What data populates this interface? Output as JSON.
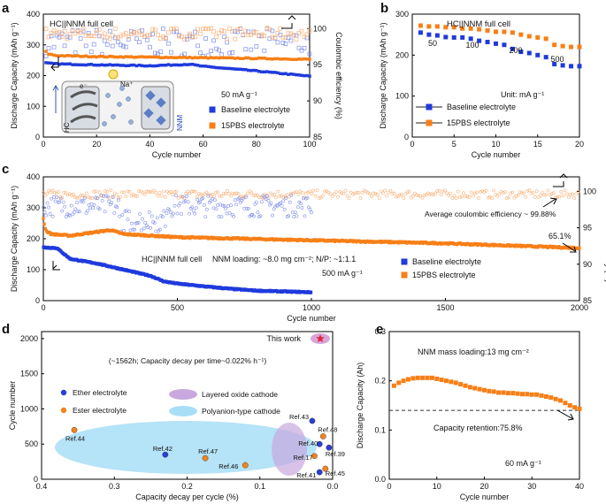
{
  "chart_data": [
    {
      "panel": "a",
      "type": "scatter",
      "title": "HC||NNM full cell",
      "xlabel": "Cycle number",
      "ylabel": "Discharge Capacity (mAh g⁻¹)",
      "ylabel2": "Coulombic efficiency (%)",
      "xlim": [
        0,
        100
      ],
      "ylim": [
        0,
        400
      ],
      "y2lim": [
        85,
        102
      ],
      "xticks": [
        "0",
        "20",
        "40",
        "60",
        "80",
        "100"
      ],
      "yticks": [
        "0",
        "100",
        "200",
        "300",
        "400"
      ],
      "y2ticks": [
        "85",
        "90",
        "95",
        "100"
      ],
      "current": "50 mA g⁻¹",
      "inset_labels": [
        "e⁻",
        "Na⁺",
        "HC",
        "NNM"
      ],
      "series": [
        {
          "name": "Baseline electrolyte",
          "color": "#1f3bdc",
          "capacity": {
            "x": [
              0,
              2,
              5,
              20,
              40,
              55,
              60,
              80,
              100
            ],
            "y": [
              242,
              240,
              238,
              235,
              232,
              237,
              230,
              215,
              198
            ]
          },
          "ce_avg": 98.0
        },
        {
          "name": "15PBS electrolyte",
          "color": "#f77f16",
          "capacity": {
            "x": [
              0,
              2,
              5,
              20,
              40,
              60,
              80,
              100
            ],
            "y": [
              285,
              270,
              265,
              262,
              260,
              258,
              256,
              253
            ]
          },
          "ce_avg": 99.7
        }
      ]
    },
    {
      "panel": "b",
      "type": "line",
      "title": "HC||NNM full cell",
      "xlabel": "Cycle number",
      "ylabel": "Discharge Capacity (mAh g⁻¹)",
      "xlim": [
        0,
        20
      ],
      "ylim": [
        0,
        300
      ],
      "xticks": [
        "0",
        "5",
        "10",
        "15",
        "20"
      ],
      "yticks": [
        "0",
        "100",
        "200",
        "300"
      ],
      "rate_labels": [
        "50",
        "100",
        "200",
        "500"
      ],
      "unit": "Unit: mA g⁻¹",
      "x": [
        1,
        2,
        3,
        4,
        5,
        6,
        7,
        8,
        9,
        10,
        11,
        12,
        13,
        14,
        15,
        16,
        17,
        18,
        19,
        20
      ],
      "series": [
        {
          "name": "Baseline electrolyte",
          "color": "#1f3bdc",
          "values": [
            255,
            250,
            248,
            244,
            243,
            243,
            240,
            235,
            232,
            228,
            225,
            215,
            208,
            205,
            200,
            195,
            178,
            175,
            173,
            173
          ]
        },
        {
          "name": "15PBS electrolyte",
          "color": "#f77f16",
          "values": [
            272,
            270,
            270,
            268,
            268,
            265,
            265,
            263,
            260,
            257,
            257,
            255,
            250,
            246,
            243,
            240,
            225,
            222,
            220,
            220
          ]
        }
      ]
    },
    {
      "panel": "c",
      "type": "scatter",
      "xlabel": "Cycle number",
      "ylabel": "Discharge Capacity (mAh g⁻¹)",
      "ylabel2": "Coulombic efficiency (%)",
      "xlim": [
        0,
        2000
      ],
      "ylim": [
        0,
        400
      ],
      "y2lim": [
        85,
        102
      ],
      "xticks": [
        "0",
        "500",
        "1000",
        "1500",
        "2000"
      ],
      "yticks": [
        "0",
        "100",
        "200",
        "300",
        "400"
      ],
      "y2ticks": [
        "85",
        "90",
        "95",
        "100"
      ],
      "annotations": {
        "ce": "Average coulombic efficiency ~ 99.88%",
        "retention": "65.1%",
        "cell": "HC||NNM full cell",
        "loading": "NNM loading: ~8.0 mg cm⁻²; N/P: ~1:1.1",
        "current": "500 mA g⁻¹"
      },
      "series": [
        {
          "name": "Baseline electrolyte",
          "color": "#1f3bdc",
          "capacity": {
            "x": [
              0,
              50,
              100,
              200,
              300,
              400,
              450,
              500,
              600,
              700,
              800,
              1000
            ],
            "y": [
              172,
              170,
              135,
              120,
              100,
              80,
              62,
              55,
              46,
              38,
              32,
              27
            ]
          }
        },
        {
          "name": "15PBS electrolyte",
          "color": "#f77f16",
          "capacity": {
            "x": [
              0,
              10,
              30,
              100,
              200,
              250,
              300,
              500,
              1000,
              1500,
              2000
            ],
            "y": [
              265,
              225,
              215,
              210,
              222,
              228,
              215,
              205,
              195,
              185,
              170
            ]
          }
        }
      ]
    },
    {
      "panel": "d",
      "type": "scatter",
      "xlabel": "Capacity decay per cycle (%)",
      "ylabel": "Cycle number",
      "xlim": [
        0.4,
        0.0
      ],
      "ylim": [
        0,
        2100
      ],
      "xticks": [
        "0.4",
        "0.3",
        "0.2",
        "0.1",
        "0.0"
      ],
      "yticks": [
        "0",
        "500",
        "1000",
        "1500",
        "2000"
      ],
      "this_work": {
        "label": "This work",
        "note": "(~1562h; Capacity decay per time~0.022% h⁻¹)",
        "x": 0.017,
        "y": 2000
      },
      "legend": [
        "Ether electrolyte",
        "Ester electrolyte",
        "Layered oxide cathode",
        "Polyanion-type cathode"
      ],
      "points": [
        {
          "label": "Ref.44",
          "x": 0.355,
          "y": 700,
          "kind": "ester"
        },
        {
          "label": "Ref.42",
          "x": 0.23,
          "y": 350,
          "kind": "ether"
        },
        {
          "label": "Ref.47",
          "x": 0.175,
          "y": 300,
          "kind": "ester"
        },
        {
          "label": "Ref.46",
          "x": 0.12,
          "y": 200,
          "kind": "ester"
        },
        {
          "label": "Ref.43",
          "x": 0.028,
          "y": 830,
          "kind": "ether"
        },
        {
          "label": "Ref.48",
          "x": 0.013,
          "y": 610,
          "kind": "ester"
        },
        {
          "label": "Ref.40",
          "x": 0.018,
          "y": 500,
          "kind": "ether"
        },
        {
          "label": "Ref.17",
          "x": 0.025,
          "y": 330,
          "kind": "ester"
        },
        {
          "label": "Ref.39",
          "x": 0.005,
          "y": 450,
          "kind": "ether"
        },
        {
          "label": "Ref.41",
          "x": 0.018,
          "y": 100,
          "kind": "ether"
        },
        {
          "label": "Ref.45",
          "x": 0.01,
          "y": 150,
          "kind": "ester"
        }
      ]
    },
    {
      "panel": "e",
      "type": "line",
      "xlabel": "Cycle number",
      "ylabel": "Discharge Capacity (Ah)",
      "xlim": [
        0,
        40
      ],
      "ylim": [
        0.0,
        0.3
      ],
      "xticks": [
        "0",
        "10",
        "20",
        "30",
        "40"
      ],
      "yticks": [
        "0.0",
        "0.1",
        "0.2",
        "0.3"
      ],
      "title": "NNM mass loading:13 mg cm⁻²",
      "retention": "Capacity retention:75.8%",
      "current": "60 mA g⁻¹",
      "dashed_y": 0.14,
      "x": [
        1,
        2,
        3,
        4,
        5,
        6,
        7,
        8,
        9,
        10,
        11,
        12,
        13,
        14,
        15,
        16,
        17,
        18,
        19,
        20,
        21,
        22,
        23,
        24,
        25,
        26,
        27,
        28,
        29,
        30,
        31,
        32,
        33,
        34,
        35,
        36,
        37,
        38,
        39,
        40
      ],
      "values": [
        0.19,
        0.196,
        0.2,
        0.203,
        0.205,
        0.206,
        0.206,
        0.206,
        0.206,
        0.204,
        0.202,
        0.2,
        0.198,
        0.196,
        0.193,
        0.19,
        0.187,
        0.185,
        0.183,
        0.181,
        0.179,
        0.178,
        0.176,
        0.176,
        0.175,
        0.175,
        0.174,
        0.173,
        0.173,
        0.172,
        0.172,
        0.17,
        0.168,
        0.166,
        0.163,
        0.16,
        0.155,
        0.15,
        0.146,
        0.143
      ]
    }
  ],
  "panel_letters": [
    "a",
    "b",
    "c",
    "d",
    "e"
  ]
}
